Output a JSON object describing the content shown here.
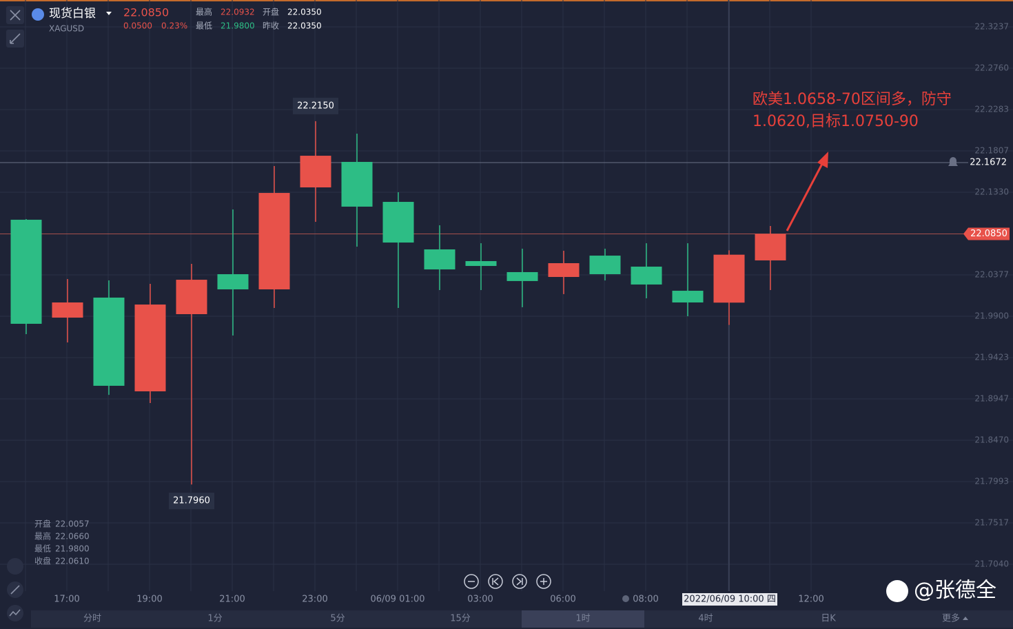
{
  "header": {
    "name": "现货白银",
    "symbol": "XAGUSD",
    "price": "22.0850",
    "change": "0.0500",
    "change_pct": "0.23%",
    "stats": [
      {
        "label": "最高",
        "value": "22.0932"
      },
      {
        "label": "开盘",
        "value": "22.0350"
      },
      {
        "label": "最低",
        "value": "21.9800"
      },
      {
        "label": "昨收",
        "value": "22.0350"
      }
    ]
  },
  "chart_data": {
    "type": "candlestick",
    "categories": [
      null,
      "17:00",
      null,
      "19:00",
      null,
      "21:00",
      null,
      "23:00",
      null,
      "06/09 01:00",
      null,
      "03:00",
      null,
      "06:00",
      null,
      "08:00",
      null,
      null,
      null,
      "12:00"
    ],
    "open": [
      22.1013,
      21.9884,
      22.0115,
      21.9034,
      21.9924,
      22.0385,
      22.021,
      22.1386,
      22.168,
      22.1219,
      22.0671,
      22.0536,
      22.0409,
      22.0353,
      22.0599,
      22.0472,
      22.0194,
      22.0057,
      22.0544,
      null
    ],
    "high": [
      22.102,
      22.0329,
      22.0313,
      22.0274,
      22.0504,
      22.1132,
      22.1632,
      22.215,
      22.2006,
      22.133,
      22.0949,
      22.0742,
      22.0679,
      22.0655,
      22.0679,
      22.0742,
      22.0742,
      22.066,
      22.0941,
      null
    ],
    "low": [
      21.9694,
      21.9598,
      21.8994,
      21.8899,
      21.796,
      21.9678,
      21.9996,
      22.0989,
      22.0703,
      21.9996,
      22.0202,
      22.0202,
      22.0004,
      22.0155,
      22.0313,
      22.0107,
      21.99,
      21.98,
      22.0202,
      null
    ],
    "close": [
      21.9813,
      22.0059,
      21.9098,
      22.0035,
      22.0321,
      22.021,
      22.1322,
      22.1751,
      22.1164,
      22.075,
      22.044,
      22.048,
      22.0306,
      22.0512,
      22.0385,
      22.0266,
      22.0059,
      22.061,
      22.085,
      null
    ],
    "high_labels": [
      null,
      null,
      null,
      null,
      null,
      null,
      null,
      "22.2150",
      null,
      null,
      null,
      null,
      null,
      null,
      null,
      null,
      null,
      null,
      null,
      null
    ],
    "low_labels": [
      null,
      null,
      null,
      null,
      "21.7960",
      null,
      null,
      null,
      null,
      null,
      null,
      null,
      null,
      null,
      null,
      null,
      null,
      null,
      null,
      null
    ],
    "crosshair_labels": [
      null,
      null,
      null,
      null,
      null,
      null,
      null,
      null,
      null,
      null,
      null,
      null,
      null,
      null,
      null,
      null,
      null,
      "2022/06/09 10:00 四",
      null,
      null
    ],
    "up_color": "#e8524a",
    "down_color": "#2dbd85",
    "ylim": [
      21.6754,
      22.3547
    ],
    "yticks": [
      22.3237,
      {
        "value": 22.276,
        "label": "22.2760"
      },
      22.2283,
      22.1807,
      {
        "value": 22.133,
        "label": "22.1330"
      },
      22.0377,
      {
        "value": 21.99,
        "label": "21.9900"
      },
      21.9423,
      21.8947,
      {
        "value": 21.847,
        "label": "21.8470"
      },
      21.7993,
      21.7517,
      {
        "value": 21.704,
        "label": "21.7040"
      }
    ],
    "grid": true,
    "price_line": {
      "value": 22.085,
      "label": "22.0850"
    },
    "alert_line": 22.1672,
    "annotation": [
      "欧美1.0658-70区间多，防守",
      "1.0620,目标1.0750-90"
    ],
    "ohlc_legend": {
      "labels": [
        "开盘",
        "最高",
        "最低",
        "收盘"
      ],
      "values": [
        "22.0057",
        "22.0660",
        "21.9800",
        "22.0610"
      ]
    }
  },
  "tabs": [
    "分时",
    "1分",
    "5分",
    "15分",
    "1时",
    "4时",
    "日K",
    "更多"
  ],
  "active_tab": 4,
  "watermark": "@张德全"
}
